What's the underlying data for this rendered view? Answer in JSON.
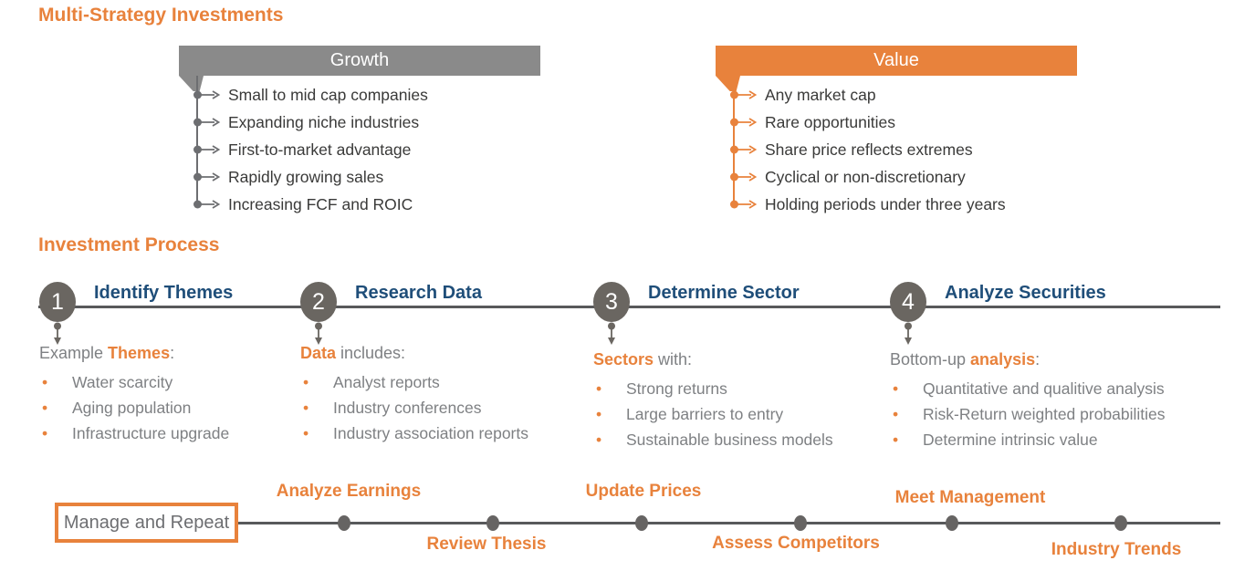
{
  "titles": {
    "main": "Multi-Strategy Investments",
    "process": "Investment Process"
  },
  "icons": {
    "bullet": "•"
  },
  "colors": {
    "orange": "#E8823C",
    "navy": "#1F4E79",
    "header_gray": "#8A8A8A",
    "circle_gray": "#6A6661",
    "line_gray": "#58595B",
    "dot_gray": "#666463",
    "growth_connector": "#6D6E71",
    "text_gray": "#7E8083",
    "item_text": "#3A3A39",
    "box_text": "#6D6E71"
  },
  "strategies": [
    {
      "name": "Growth",
      "theme": "gray",
      "items": [
        "Small to mid cap companies",
        "Expanding niche industries",
        "First-to-market advantage",
        "Rapidly growing sales",
        "Increasing FCF and ROIC"
      ]
    },
    {
      "name": "Value",
      "theme": "orange",
      "items": [
        "Any market cap",
        "Rare opportunities",
        "Share price reflects extremes",
        "Cyclical or non-discretionary",
        "Holding periods under three years"
      ]
    }
  ],
  "process": {
    "steps": [
      {
        "number": "1",
        "title": "Identify Themes",
        "lead": [
          {
            "text": "Example ",
            "color": "gray"
          },
          {
            "text": "Themes",
            "color": "orange"
          },
          {
            "text": ":",
            "color": "gray"
          }
        ],
        "bullets": [
          "Water scarcity",
          "Aging population",
          "Infrastructure upgrade"
        ]
      },
      {
        "number": "2",
        "title": "Research Data",
        "lead": [
          {
            "text": "Data",
            "color": "orange"
          },
          {
            "text": " includes:",
            "color": "gray"
          }
        ],
        "bullets": [
          "Analyst reports",
          "Industry conferences",
          "Industry association reports"
        ]
      },
      {
        "number": "3",
        "title": "Determine Sector",
        "lead": [
          {
            "text": "Sectors",
            "color": "orange"
          },
          {
            "text": " with:",
            "color": "gray"
          }
        ],
        "bullets": [
          "Strong returns",
          "Large barriers to entry",
          "Sustainable business models"
        ]
      },
      {
        "number": "4",
        "title": "Analyze Securities",
        "lead": [
          {
            "text": "Bottom-up ",
            "color": "gray"
          },
          {
            "text": "analysis",
            "color": "orange"
          },
          {
            "text": ":",
            "color": "gray"
          }
        ],
        "bullets": [
          "Quantitative and qualitive analysis",
          "Risk-Return weighted probabilities",
          "Determine intrinsic value"
        ]
      }
    ]
  },
  "repeat_timeline": {
    "box_label": "Manage and Repeat",
    "stops": [
      {
        "label": "Analyze Earnings",
        "position": "above"
      },
      {
        "label": "Review Thesis",
        "position": "below"
      },
      {
        "label": "Update Prices",
        "position": "above"
      },
      {
        "label": "Assess Competitors",
        "position": "below"
      },
      {
        "label": "Meet Management",
        "position": "above"
      },
      {
        "label": "Industry Trends",
        "position": "below"
      }
    ]
  }
}
